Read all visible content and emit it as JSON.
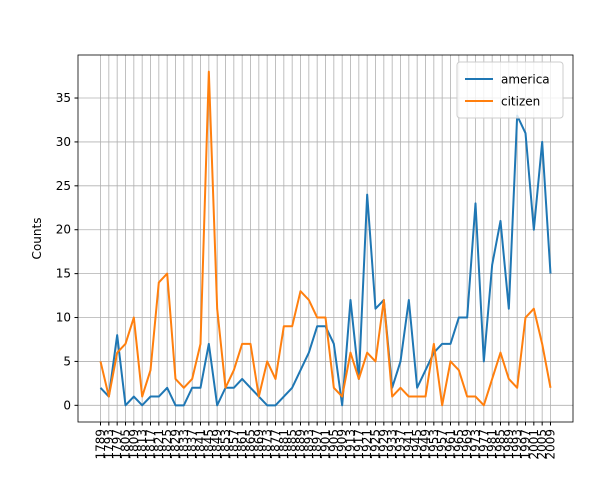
{
  "chart_data": {
    "type": "line",
    "ylabel": "Counts",
    "categories": [
      "1789",
      "1793",
      "1797",
      "1805",
      "1809",
      "1813",
      "1817",
      "1821",
      "1825",
      "1829",
      "1833",
      "1837",
      "1841",
      "1845",
      "1849",
      "1853",
      "1857",
      "1861",
      "1865",
      "1869",
      "1873",
      "1877",
      "1881",
      "1885",
      "1889",
      "1893",
      "1897",
      "1901",
      "1905",
      "1909",
      "1913",
      "1917",
      "1921",
      "1925",
      "1929",
      "1933",
      "1937",
      "1941",
      "1945",
      "1949",
      "1953",
      "1957",
      "1961",
      "1965",
      "1969",
      "1973",
      "1977",
      "1981",
      "1985",
      "1989",
      "1993",
      "1997",
      "2001",
      "2005",
      "2009"
    ],
    "series": [
      {
        "name": "america",
        "color": "#1f77b4",
        "values": [
          2,
          1,
          8,
          0,
          1,
          0,
          1,
          1,
          2,
          0,
          0,
          2,
          2,
          7,
          0,
          2,
          2,
          3,
          2,
          1,
          0,
          0,
          1,
          2,
          4,
          6,
          9,
          9,
          7,
          0,
          12,
          3,
          24,
          11,
          12,
          2,
          5,
          12,
          2,
          4,
          6,
          7,
          7,
          10,
          10,
          23,
          5,
          16,
          21,
          11,
          33,
          31,
          20,
          30,
          15
        ]
      },
      {
        "name": "citizen",
        "color": "#ff7f0e",
        "values": [
          5,
          1,
          6,
          7,
          10,
          1,
          4,
          14,
          15,
          3,
          2,
          3,
          7,
          38,
          11,
          2,
          4,
          7,
          7,
          1,
          5,
          3,
          9,
          9,
          13,
          12,
          10,
          10,
          2,
          1,
          6,
          3,
          6,
          5,
          12,
          1,
          2,
          1,
          1,
          1,
          7,
          0,
          5,
          4,
          1,
          1,
          0,
          3,
          6,
          3,
          2,
          10,
          11,
          7,
          2
        ]
      }
    ],
    "ylim": [
      -1.9,
      39.9
    ],
    "yticks": [
      0,
      5,
      10,
      15,
      20,
      25,
      30,
      35
    ],
    "grid": true,
    "legend": "upper right"
  }
}
